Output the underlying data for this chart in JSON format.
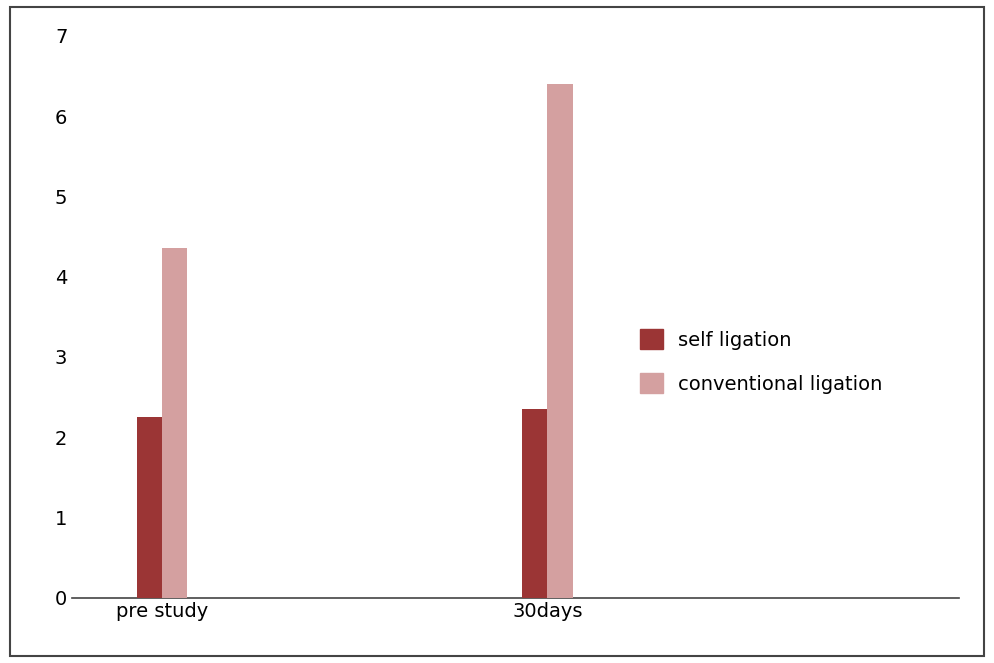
{
  "categories": [
    "pre study",
    "30days"
  ],
  "self_ligation": [
    2.25,
    2.35
  ],
  "conventional_ligation": [
    4.35,
    6.4
  ],
  "self_ligation_color": "#9B3535",
  "conventional_ligation_color": "#D4A0A0",
  "ylim": [
    0,
    7
  ],
  "yticks": [
    0,
    1,
    2,
    3,
    4,
    5,
    6,
    7
  ],
  "bar_width": 0.13,
  "group_centers": [
    1,
    3
  ],
  "x_tick_positions": [
    1,
    3
  ],
  "xlim": [
    0.6,
    5.2
  ],
  "legend_labels": [
    "self ligation",
    "conventional ligation"
  ],
  "background_color": "#ffffff",
  "tick_fontsize": 14,
  "legend_fontsize": 14,
  "xtick_fontsize": 14,
  "border_color": "#444444"
}
